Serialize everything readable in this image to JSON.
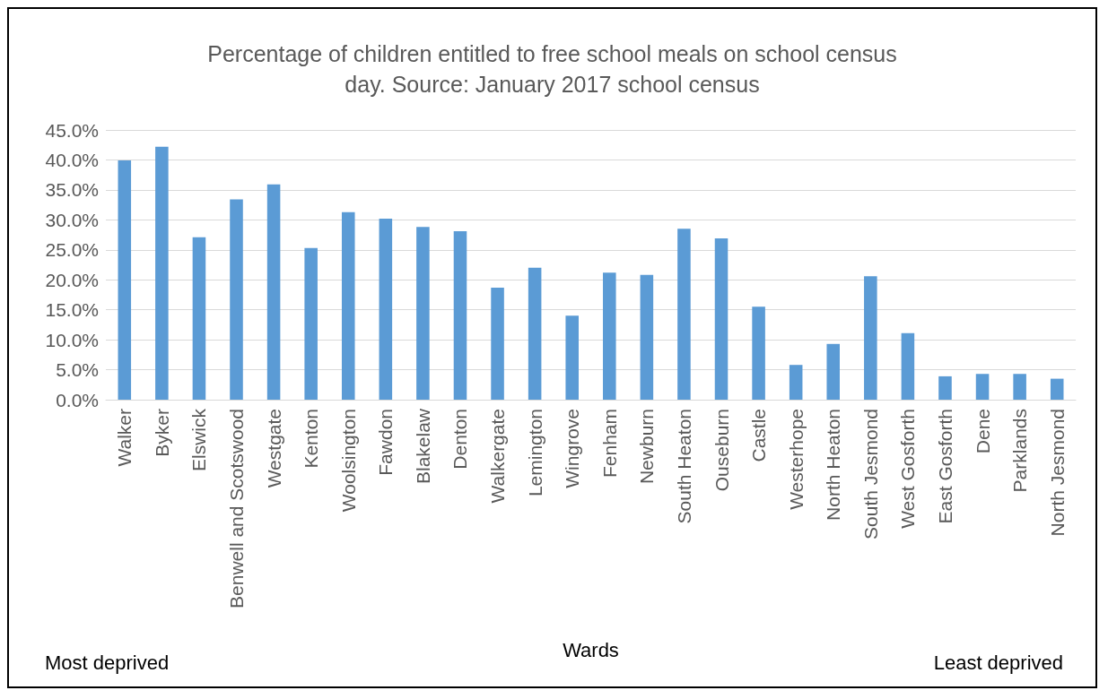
{
  "chart_data": {
    "type": "bar",
    "title": "Percentage of children entitled to free school meals on school census\nday. Source: January 2017 school census",
    "xlabel": "Wards",
    "categories": [
      "Walker",
      "Byker",
      "Elswick",
      "Benwell and Scotswood",
      "Westgate",
      "Kenton",
      "Woolsington",
      "Fawdon",
      "Blakelaw",
      "Denton",
      "Walkergate",
      "Lemington",
      "Wingrove",
      "Fenham",
      "Newburn",
      "South Heaton",
      "Ouseburn",
      "Castle",
      "Westerhope",
      "North Heaton",
      "South Jesmond",
      "West Gosforth",
      "East Gosforth",
      "Dene",
      "Parklands",
      "North Jesmond"
    ],
    "values": [
      39.9,
      42.2,
      27.1,
      33.4,
      35.9,
      25.3,
      31.3,
      30.2,
      28.8,
      28.1,
      18.7,
      22.0,
      14.0,
      21.2,
      20.8,
      28.5,
      26.9,
      15.5,
      5.8,
      9.3,
      20.6,
      11.1,
      3.9,
      4.3,
      4.3,
      3.5
    ],
    "color": "#5b9bd5",
    "ylim": [
      0,
      45
    ],
    "yticks": [
      {
        "value": 0,
        "label": "0.0%"
      },
      {
        "value": 5,
        "label": "5.0%"
      },
      {
        "value": 10,
        "label": "10.0%"
      },
      {
        "value": 15,
        "label": "15.0%"
      },
      {
        "value": 20,
        "label": "20.0%"
      },
      {
        "value": 25,
        "label": "25.0%"
      },
      {
        "value": 30,
        "label": "30.0%"
      },
      {
        "value": 35,
        "label": "35.0%"
      },
      {
        "value": 40,
        "label": "40.0%"
      },
      {
        "value": 45,
        "label": "45.0%"
      }
    ],
    "grid": "y",
    "annotations": [
      "Most deprived",
      "Least deprived"
    ]
  }
}
